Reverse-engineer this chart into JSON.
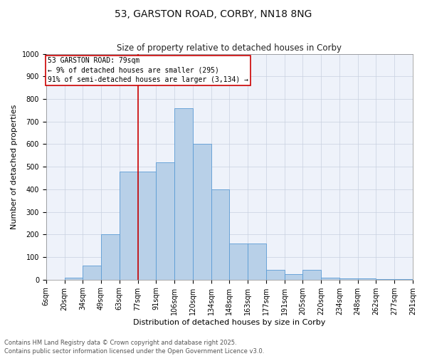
{
  "title": "53, GARSTON ROAD, CORBY, NN18 8NG",
  "subtitle": "Size of property relative to detached houses in Corby",
  "xlabel": "Distribution of detached houses by size in Corby",
  "ylabel": "Number of detached properties",
  "bins": [
    "6sqm",
    "20sqm",
    "34sqm",
    "49sqm",
    "63sqm",
    "77sqm",
    "91sqm",
    "106sqm",
    "120sqm",
    "134sqm",
    "148sqm",
    "163sqm",
    "177sqm",
    "191sqm",
    "205sqm",
    "220sqm",
    "234sqm",
    "248sqm",
    "262sqm",
    "277sqm",
    "291sqm"
  ],
  "bar_values": [
    0,
    10,
    63,
    200,
    480,
    480,
    520,
    760,
    600,
    400,
    160,
    160,
    42,
    25,
    42,
    10,
    5,
    5,
    3,
    3
  ],
  "bar_color": "#b8d0e8",
  "bar_edge_color": "#5b9bd5",
  "vline_x_index": 5,
  "vline_color": "#cc0000",
  "annotation_text": "53 GARSTON ROAD: 79sqm\n← 9% of detached houses are smaller (295)\n91% of semi-detached houses are larger (3,134) →",
  "annotation_box_color": "#cc0000",
  "ylim": [
    0,
    1000
  ],
  "yticks": [
    0,
    100,
    200,
    300,
    400,
    500,
    600,
    700,
    800,
    900,
    1000
  ],
  "background_color": "#eef2fa",
  "grid_color": "#c8d0df",
  "footer": "Contains HM Land Registry data © Crown copyright and database right 2025.\nContains public sector information licensed under the Open Government Licence v3.0.",
  "title_fontsize": 10,
  "subtitle_fontsize": 8.5,
  "axis_label_fontsize": 8,
  "tick_fontsize": 7,
  "annotation_fontsize": 7,
  "footer_fontsize": 6
}
